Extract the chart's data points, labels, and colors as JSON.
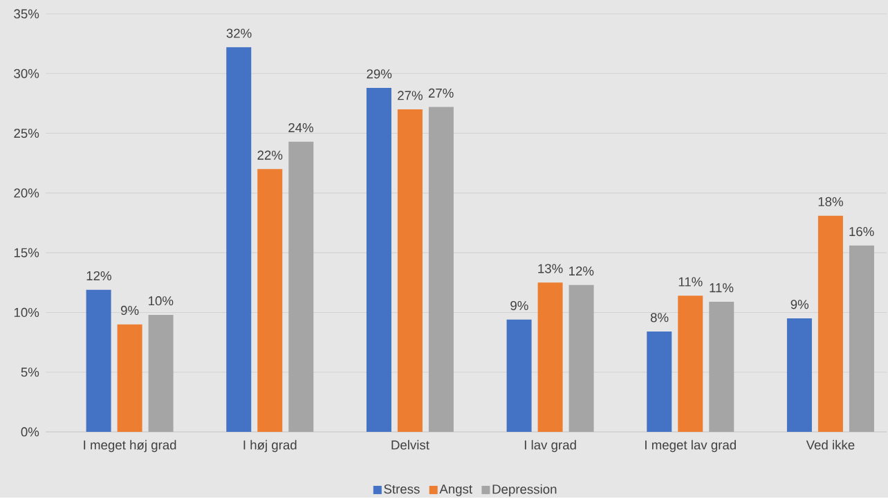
{
  "chart_data": {
    "type": "bar",
    "categories": [
      "I meget høj grad",
      "I høj grad",
      "Delvist",
      "I lav grad",
      "I meget lav grad",
      "Ved ikke"
    ],
    "series": [
      {
        "name": "Stress",
        "color": "#4472c4",
        "values": [
          11.9,
          32.2,
          28.8,
          9.4,
          8.4,
          9.5
        ],
        "value_labels": [
          "12%",
          "32%",
          "29%",
          "9%",
          "8%",
          "9%"
        ]
      },
      {
        "name": "Angst",
        "color": "#ed7d31",
        "values": [
          9.0,
          22.0,
          27.0,
          12.5,
          11.4,
          18.1
        ],
        "value_labels": [
          "9%",
          "22%",
          "27%",
          "13%",
          "11%",
          "18%"
        ]
      },
      {
        "name": "Depression",
        "color": "#a5a5a5",
        "values": [
          9.8,
          24.3,
          27.2,
          12.3,
          10.9,
          15.6
        ],
        "value_labels": [
          "10%",
          "24%",
          "27%",
          "12%",
          "11%",
          "16%"
        ]
      }
    ],
    "ylim": [
      0,
      35
    ],
    "yticks": [
      {
        "value": 0,
        "label": "0%"
      },
      {
        "value": 5,
        "label": "5%"
      },
      {
        "value": 10,
        "label": "10%"
      },
      {
        "value": 15,
        "label": "15%"
      },
      {
        "value": 20,
        "label": "20%"
      },
      {
        "value": 25,
        "label": "25%"
      },
      {
        "value": 30,
        "label": "30%"
      },
      {
        "value": 35,
        "label": "35%"
      }
    ],
    "grid": "y",
    "legend": "bottom"
  }
}
